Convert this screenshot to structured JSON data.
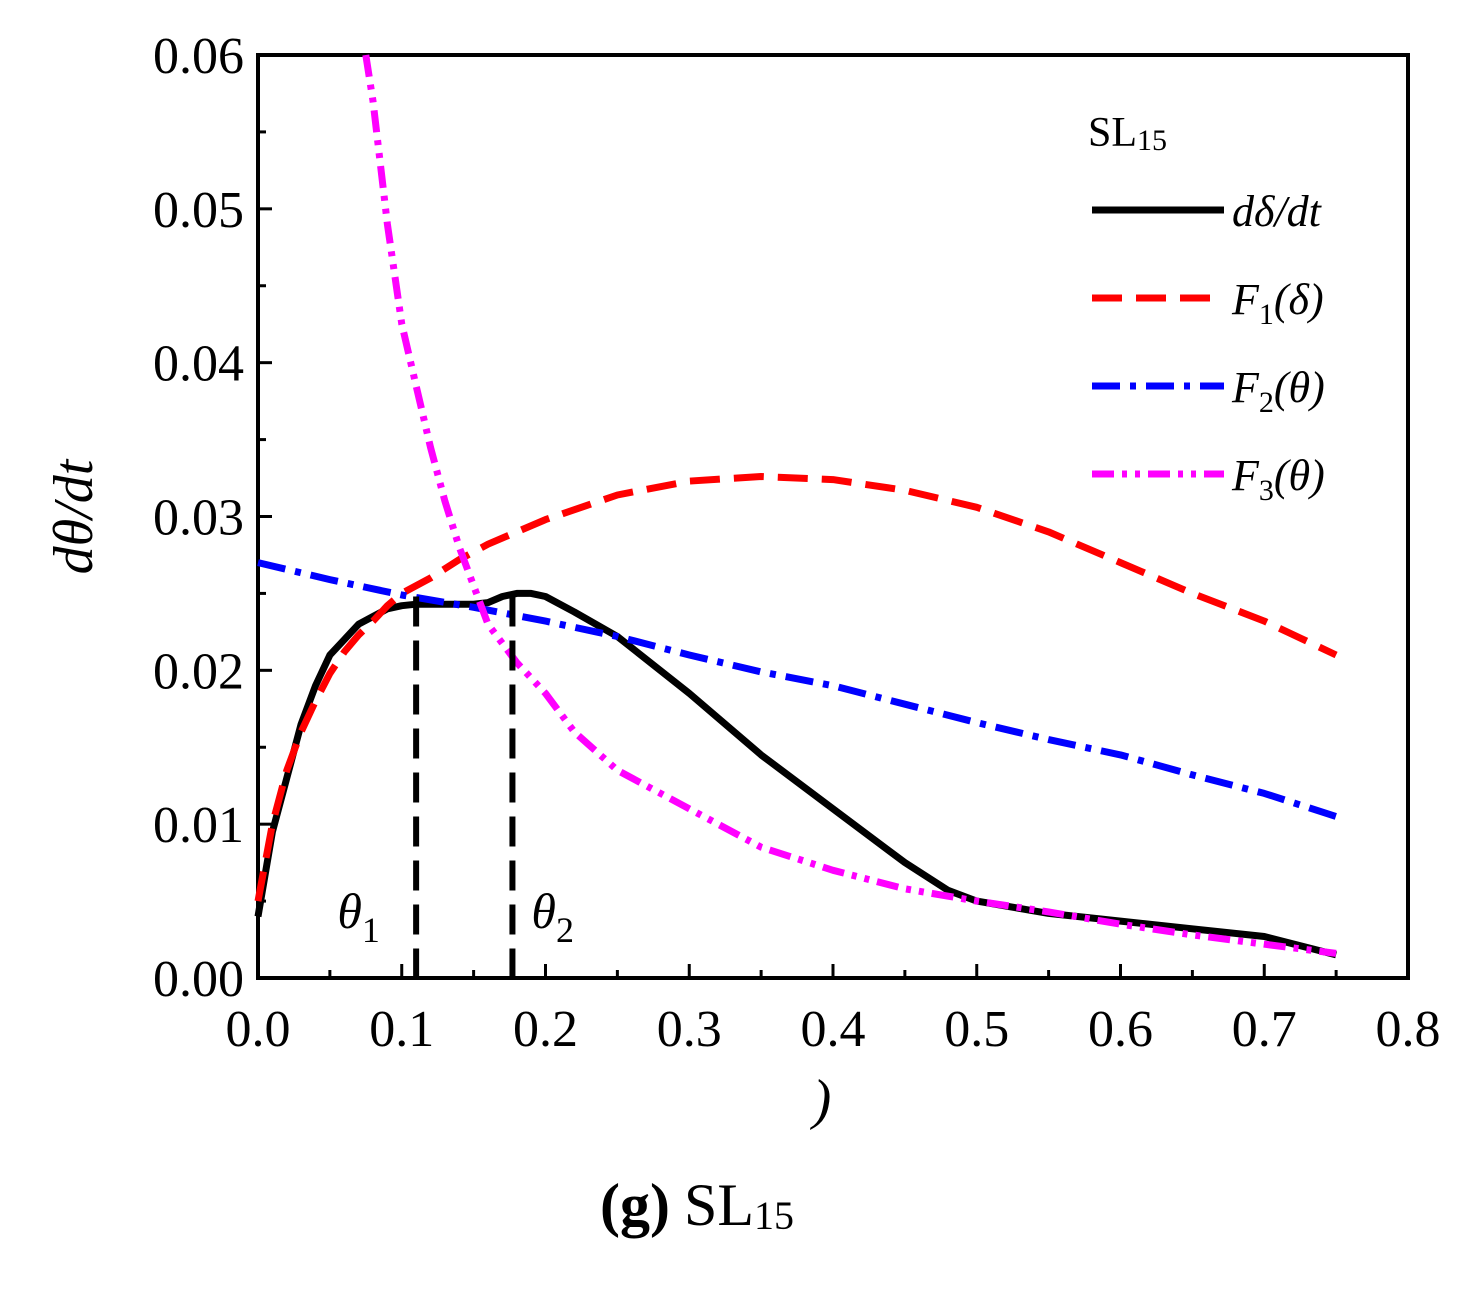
{
  "chart_data": {
    "type": "line",
    "title": "",
    "caption_prefix": "(g)",
    "caption_main": "SL",
    "caption_sub": "15",
    "xlabel": ")",
    "ylabel": "dθ/dt",
    "xlim": [
      0.0,
      0.8
    ],
    "ylim": [
      0.0,
      0.06
    ],
    "xticks": [
      "0.0",
      "0.1",
      "0.2",
      "0.3",
      "0.4",
      "0.5",
      "0.6",
      "0.7",
      "0.8"
    ],
    "yticks": [
      "0.00",
      "0.01",
      "0.02",
      "0.03",
      "0.04",
      "0.05",
      "0.06"
    ],
    "legend_title": "SL",
    "legend_title_sub": "15",
    "legend_position": "top-right",
    "series": [
      {
        "name": "dδ/dt",
        "label_main": "dδ/dt",
        "label_sub": "",
        "label_arg": "",
        "color": "#000000",
        "style": "solid",
        "x": [
          0.0,
          0.01,
          0.02,
          0.03,
          0.04,
          0.05,
          0.06,
          0.07,
          0.08,
          0.09,
          0.1,
          0.11,
          0.12,
          0.13,
          0.14,
          0.15,
          0.16,
          0.17,
          0.18,
          0.19,
          0.2,
          0.22,
          0.25,
          0.3,
          0.35,
          0.4,
          0.45,
          0.48,
          0.5,
          0.55,
          0.6,
          0.65,
          0.7,
          0.75
        ],
        "y": [
          0.004,
          0.0095,
          0.013,
          0.0165,
          0.019,
          0.021,
          0.022,
          0.023,
          0.0235,
          0.024,
          0.0242,
          0.0243,
          0.0243,
          0.0243,
          0.0243,
          0.0243,
          0.0244,
          0.0248,
          0.025,
          0.025,
          0.0248,
          0.0238,
          0.0222,
          0.0185,
          0.0145,
          0.011,
          0.0075,
          0.0057,
          0.005,
          0.0042,
          0.0037,
          0.0032,
          0.0027,
          0.0015
        ]
      },
      {
        "name": "F1(δ)",
        "label_main": "F",
        "label_sub": "1",
        "label_arg": "(δ)",
        "color": "#ff0000",
        "style": "dashed",
        "x": [
          0.0,
          0.01,
          0.02,
          0.03,
          0.04,
          0.05,
          0.06,
          0.07,
          0.08,
          0.09,
          0.1,
          0.12,
          0.14,
          0.16,
          0.18,
          0.2,
          0.25,
          0.3,
          0.35,
          0.4,
          0.45,
          0.5,
          0.55,
          0.6,
          0.65,
          0.7,
          0.75
        ],
        "y": [
          0.005,
          0.01,
          0.0135,
          0.016,
          0.018,
          0.0198,
          0.0212,
          0.0223,
          0.0232,
          0.0242,
          0.025,
          0.026,
          0.0272,
          0.0282,
          0.029,
          0.0298,
          0.0314,
          0.0323,
          0.0326,
          0.0324,
          0.0317,
          0.0306,
          0.029,
          0.027,
          0.025,
          0.0232,
          0.021
        ]
      },
      {
        "name": "F2(θ)",
        "label_main": "F",
        "label_sub": "2",
        "label_arg": "(θ)",
        "color": "#0000ff",
        "style": "dashdot",
        "x": [
          0.0,
          0.05,
          0.1,
          0.15,
          0.2,
          0.25,
          0.3,
          0.35,
          0.4,
          0.45,
          0.5,
          0.55,
          0.6,
          0.65,
          0.7,
          0.75
        ],
        "y": [
          0.027,
          0.0259,
          0.0249,
          0.0241,
          0.0232,
          0.0222,
          0.021,
          0.0199,
          0.019,
          0.0178,
          0.0166,
          0.0155,
          0.0145,
          0.0132,
          0.012,
          0.0105
        ]
      },
      {
        "name": "F3(θ)",
        "label_main": "F",
        "label_sub": "3",
        "label_arg": "(θ)",
        "color": "#ff00ff",
        "style": "dashdotdot",
        "x": [
          0.075,
          0.08,
          0.085,
          0.09,
          0.1,
          0.11,
          0.12,
          0.13,
          0.14,
          0.15,
          0.16,
          0.18,
          0.2,
          0.22,
          0.25,
          0.3,
          0.35,
          0.4,
          0.45,
          0.5,
          0.55,
          0.6,
          0.65,
          0.7,
          0.75
        ],
        "y": [
          0.06,
          0.057,
          0.053,
          0.049,
          0.0425,
          0.0385,
          0.0345,
          0.031,
          0.028,
          0.0255,
          0.023,
          0.0205,
          0.0185,
          0.016,
          0.0135,
          0.011,
          0.0085,
          0.007,
          0.0058,
          0.005,
          0.0043,
          0.0035,
          0.0028,
          0.0022,
          0.0016
        ]
      }
    ],
    "vlines": [
      {
        "name": "θ1 marker",
        "x": 0.11,
        "y_top": 0.0248,
        "label_main": "θ",
        "label_sub": "1",
        "label_x": 0.07
      },
      {
        "name": "θ2 marker",
        "x": 0.177,
        "y_top": 0.0248,
        "label_main": "θ",
        "label_sub": "2",
        "label_x": 0.205
      }
    ]
  }
}
